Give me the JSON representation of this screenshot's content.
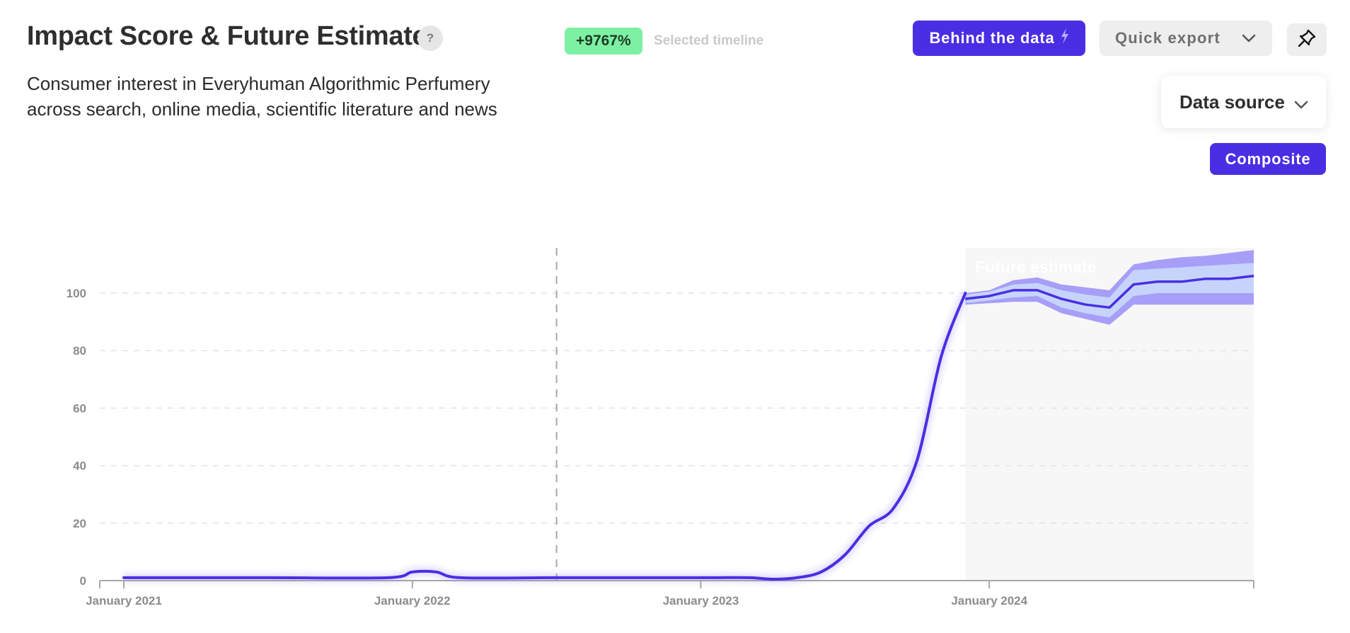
{
  "header": {
    "title": "Impact Score & Future Estimate",
    "help_icon": "?",
    "subtitle": "Consumer interest in Everyhuman Algorithmic Perfumery across search, online media, scientific literature and news",
    "change_badge": "+9767%",
    "timeline_label": "Selected timeline"
  },
  "toolbar": {
    "behind_label": "Behind the data",
    "behind_icon": "lightning-icon",
    "export_label": "Quick export",
    "pin_icon": "pin-icon",
    "data_source_label": "Data source",
    "composite_label": "Composite"
  },
  "colors": {
    "accent": "#4a2ee3",
    "badge": "#7ef0a4",
    "band_outer": "#a79ef7",
    "band_inner": "#c6d4fb",
    "forecast_bg": "#f7f7f7"
  },
  "chart_data": {
    "type": "line",
    "title": "",
    "xlabel": "",
    "ylabel": "",
    "ylim": [
      0,
      100
    ],
    "yticks": [
      0,
      20,
      40,
      60,
      80,
      100
    ],
    "xticks": [
      "January 2021",
      "January 2022",
      "January 2023",
      "January 2024"
    ],
    "xlim": [
      "2020-12",
      "2024-12"
    ],
    "grid": true,
    "selected_timeline_marker": "2022-07",
    "forecast_label": "Future estimate",
    "forecast_start": "2023-12",
    "series": [
      {
        "kind": "actual",
        "points": [
          [
            "2021-01",
            1
          ],
          [
            "2021-07",
            1
          ],
          [
            "2021-12",
            1
          ],
          [
            "2022-01",
            3
          ],
          [
            "2022-02",
            3
          ],
          [
            "2022-03",
            1
          ],
          [
            "2022-07",
            1
          ],
          [
            "2023-01",
            1
          ],
          [
            "2023-03",
            1
          ],
          [
            "2023-04",
            0.5
          ],
          [
            "2023-05",
            1
          ],
          [
            "2023-06",
            3
          ],
          [
            "2023-07",
            9
          ],
          [
            "2023-08",
            19
          ],
          [
            "2023-09",
            25
          ],
          [
            "2023-10",
            42
          ],
          [
            "2023-11",
            78
          ],
          [
            "2023-12",
            100
          ]
        ]
      },
      {
        "kind": "forecast",
        "points": [
          [
            "2023-12",
            98
          ],
          [
            "2024-01",
            99
          ],
          [
            "2024-02",
            101
          ],
          [
            "2024-03",
            101
          ],
          [
            "2024-04",
            98
          ],
          [
            "2024-05",
            96
          ],
          [
            "2024-06",
            95
          ],
          [
            "2024-07",
            103
          ],
          [
            "2024-08",
            104
          ],
          [
            "2024-09",
            104
          ],
          [
            "2024-10",
            105
          ],
          [
            "2024-11",
            105
          ],
          [
            "2024-12",
            106
          ]
        ],
        "band_inner": [
          [
            96.5,
            99.5
          ],
          [
            97.5,
            100.5
          ],
          [
            98.5,
            103
          ],
          [
            99,
            103.5
          ],
          [
            95,
            101
          ],
          [
            93,
            99.5
          ],
          [
            91.5,
            98.5
          ],
          [
            99,
            108
          ],
          [
            100,
            108.5
          ],
          [
            100,
            109
          ],
          [
            100,
            109.5
          ],
          [
            100,
            110
          ],
          [
            100,
            110.5
          ]
        ],
        "band_outer": [
          [
            96,
            100
          ],
          [
            96.5,
            101
          ],
          [
            97,
            104.5
          ],
          [
            97,
            105.5
          ],
          [
            93,
            103
          ],
          [
            91,
            102
          ],
          [
            89,
            101
          ],
          [
            96,
            110
          ],
          [
            96,
            111.5
          ],
          [
            96,
            112.5
          ],
          [
            96,
            113
          ],
          [
            96,
            114
          ],
          [
            96,
            115
          ]
        ]
      }
    ]
  }
}
